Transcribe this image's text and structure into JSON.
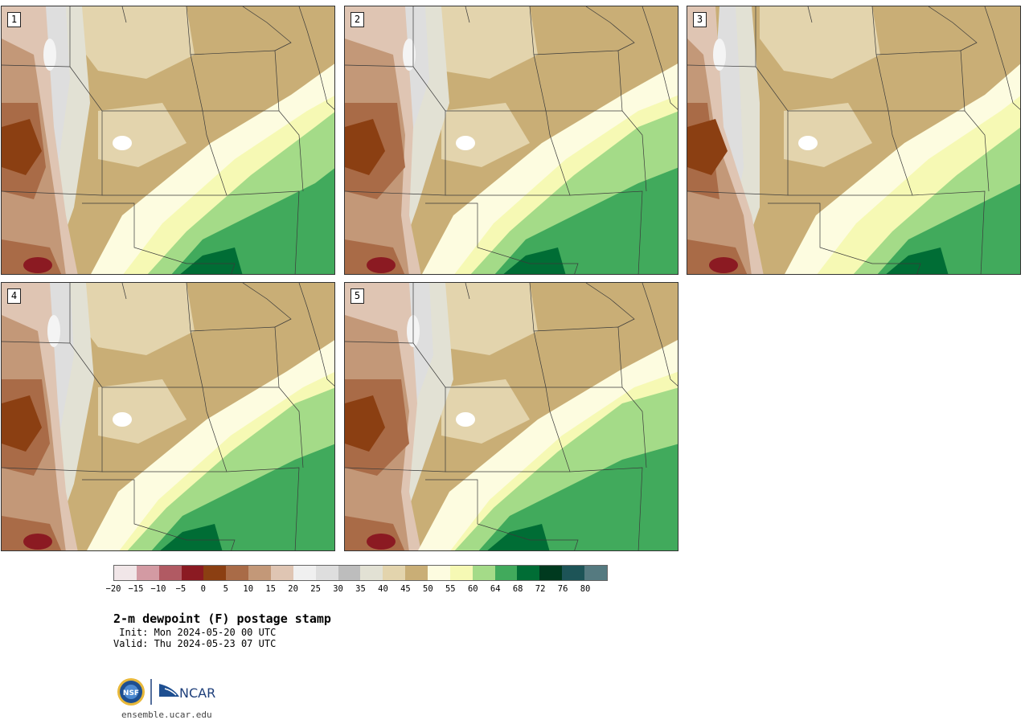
{
  "panels": [
    {
      "label": "1"
    },
    {
      "label": "2"
    },
    {
      "label": "3"
    },
    {
      "label": "4"
    },
    {
      "label": "5"
    }
  ],
  "colorbar": {
    "colors": [
      "#f1e6e8",
      "#d39aa3",
      "#b15a63",
      "#8b1a22",
      "#8b3f12",
      "#a96b47",
      "#c39878",
      "#dfc5b3",
      "#f0f0f0",
      "#dedede",
      "#bdbdbd",
      "#e2e1d4",
      "#e3d4ad",
      "#c9ae76",
      "#fdfce0",
      "#f6f9b4",
      "#a4db88",
      "#41aa5c",
      "#006d35",
      "#003a1f",
      "#1d5457",
      "#557a80"
    ],
    "ticks": [
      "−20",
      "−15",
      "−10",
      "−5",
      "0",
      "5",
      "10",
      "15",
      "20",
      "25",
      "30",
      "35",
      "40",
      "45",
      "50",
      "55",
      "60",
      "64",
      "68",
      "72",
      "76",
      "80"
    ]
  },
  "title": "2-m dewpoint (F) postage stamp",
  "init": " Init: Mon 2024-05-20 00 UTC",
  "valid": "Valid: Thu 2024-05-23 07 UTC",
  "logos": {
    "left": "NSF",
    "right": "NCAR"
  },
  "site": "ensemble.ucar.edu"
}
